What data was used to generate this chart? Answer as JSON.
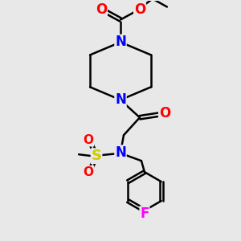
{
  "bg_color": "#e8e8e8",
  "atom_colors": {
    "C": "#000000",
    "N": "#0000ff",
    "O": "#ff0000",
    "S": "#cccc00",
    "F": "#ff00ff"
  },
  "bond_color": "#000000",
  "bond_width": 1.8
}
